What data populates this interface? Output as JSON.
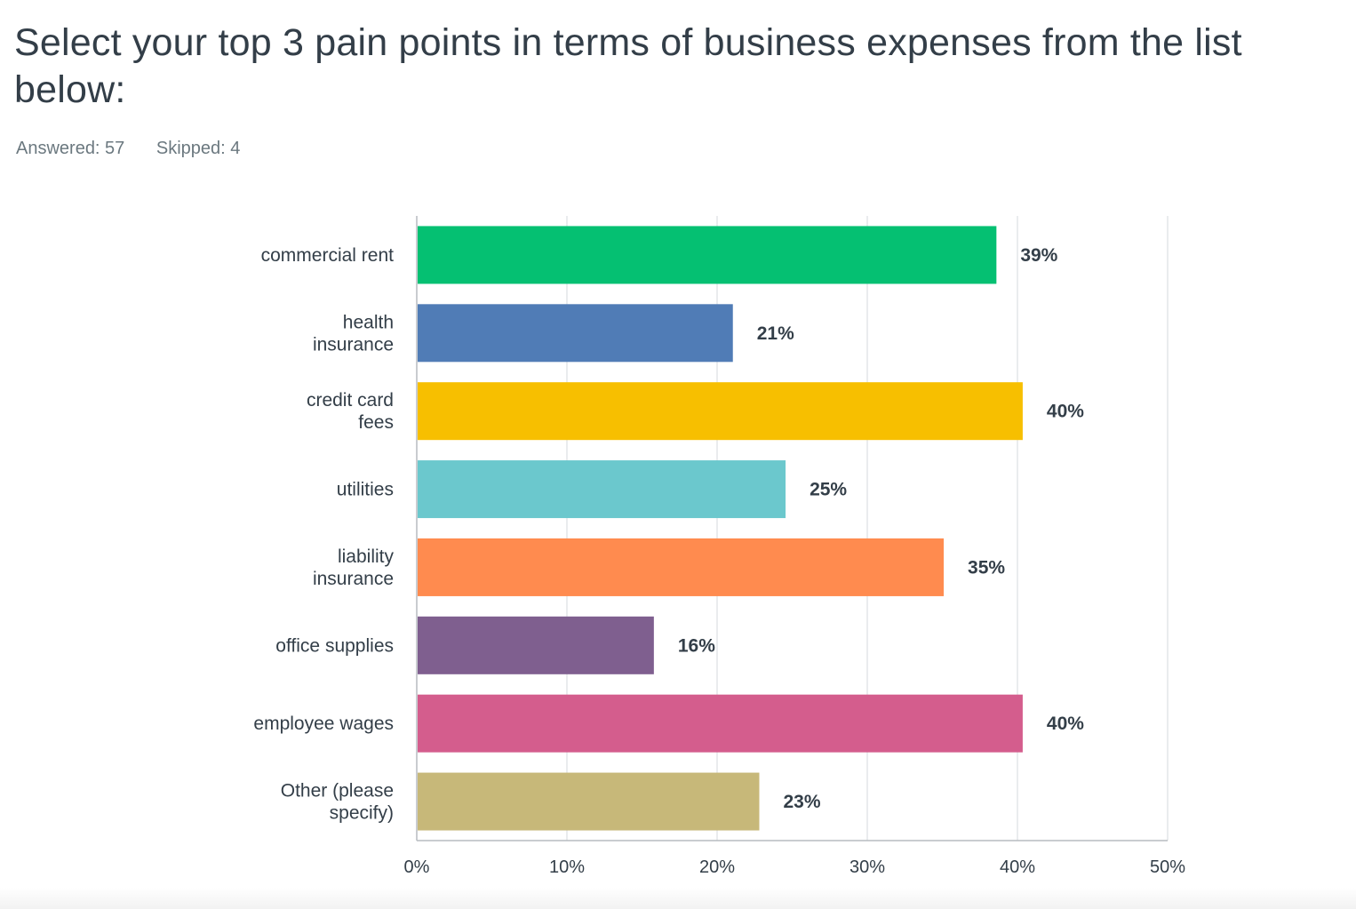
{
  "question": {
    "title": "Select your top 3 pain points in terms of business expenses from the list below:",
    "answered": "Answered: 57",
    "skipped": "Skipped: 4"
  },
  "colors": {
    "grid": "#e4e6e8",
    "axis": "#b7bcc0",
    "category_label": "#333e48",
    "value_label": "#333e48"
  },
  "chart_data": {
    "type": "bar",
    "orientation": "horizontal",
    "categories": [
      [
        "commercial rent"
      ],
      [
        "health",
        "insurance"
      ],
      [
        "credit card",
        "fees"
      ],
      [
        "utilities"
      ],
      [
        "liability",
        "insurance"
      ],
      [
        "office supplies"
      ],
      [
        "employee wages"
      ],
      [
        "Other (please",
        "specify)"
      ]
    ],
    "values": [
      38.6,
      21.05,
      40.35,
      24.56,
      35.09,
      15.79,
      40.35,
      22.81
    ],
    "value_labels": [
      "39%",
      "21%",
      "40%",
      "25%",
      "35%",
      "16%",
      "40%",
      "23%"
    ],
    "bar_colors": [
      "#05c072",
      "#507cb6",
      "#f7bf00",
      "#6bc8cd",
      "#ff8b4f",
      "#7f5f8f",
      "#d45d8d",
      "#c7b879"
    ],
    "xlim": [
      0,
      50
    ],
    "x_ticks": [
      0,
      10,
      20,
      30,
      40,
      50
    ],
    "x_tick_labels": [
      "0%",
      "10%",
      "20%",
      "30%",
      "40%",
      "50%"
    ],
    "grid": true
  }
}
